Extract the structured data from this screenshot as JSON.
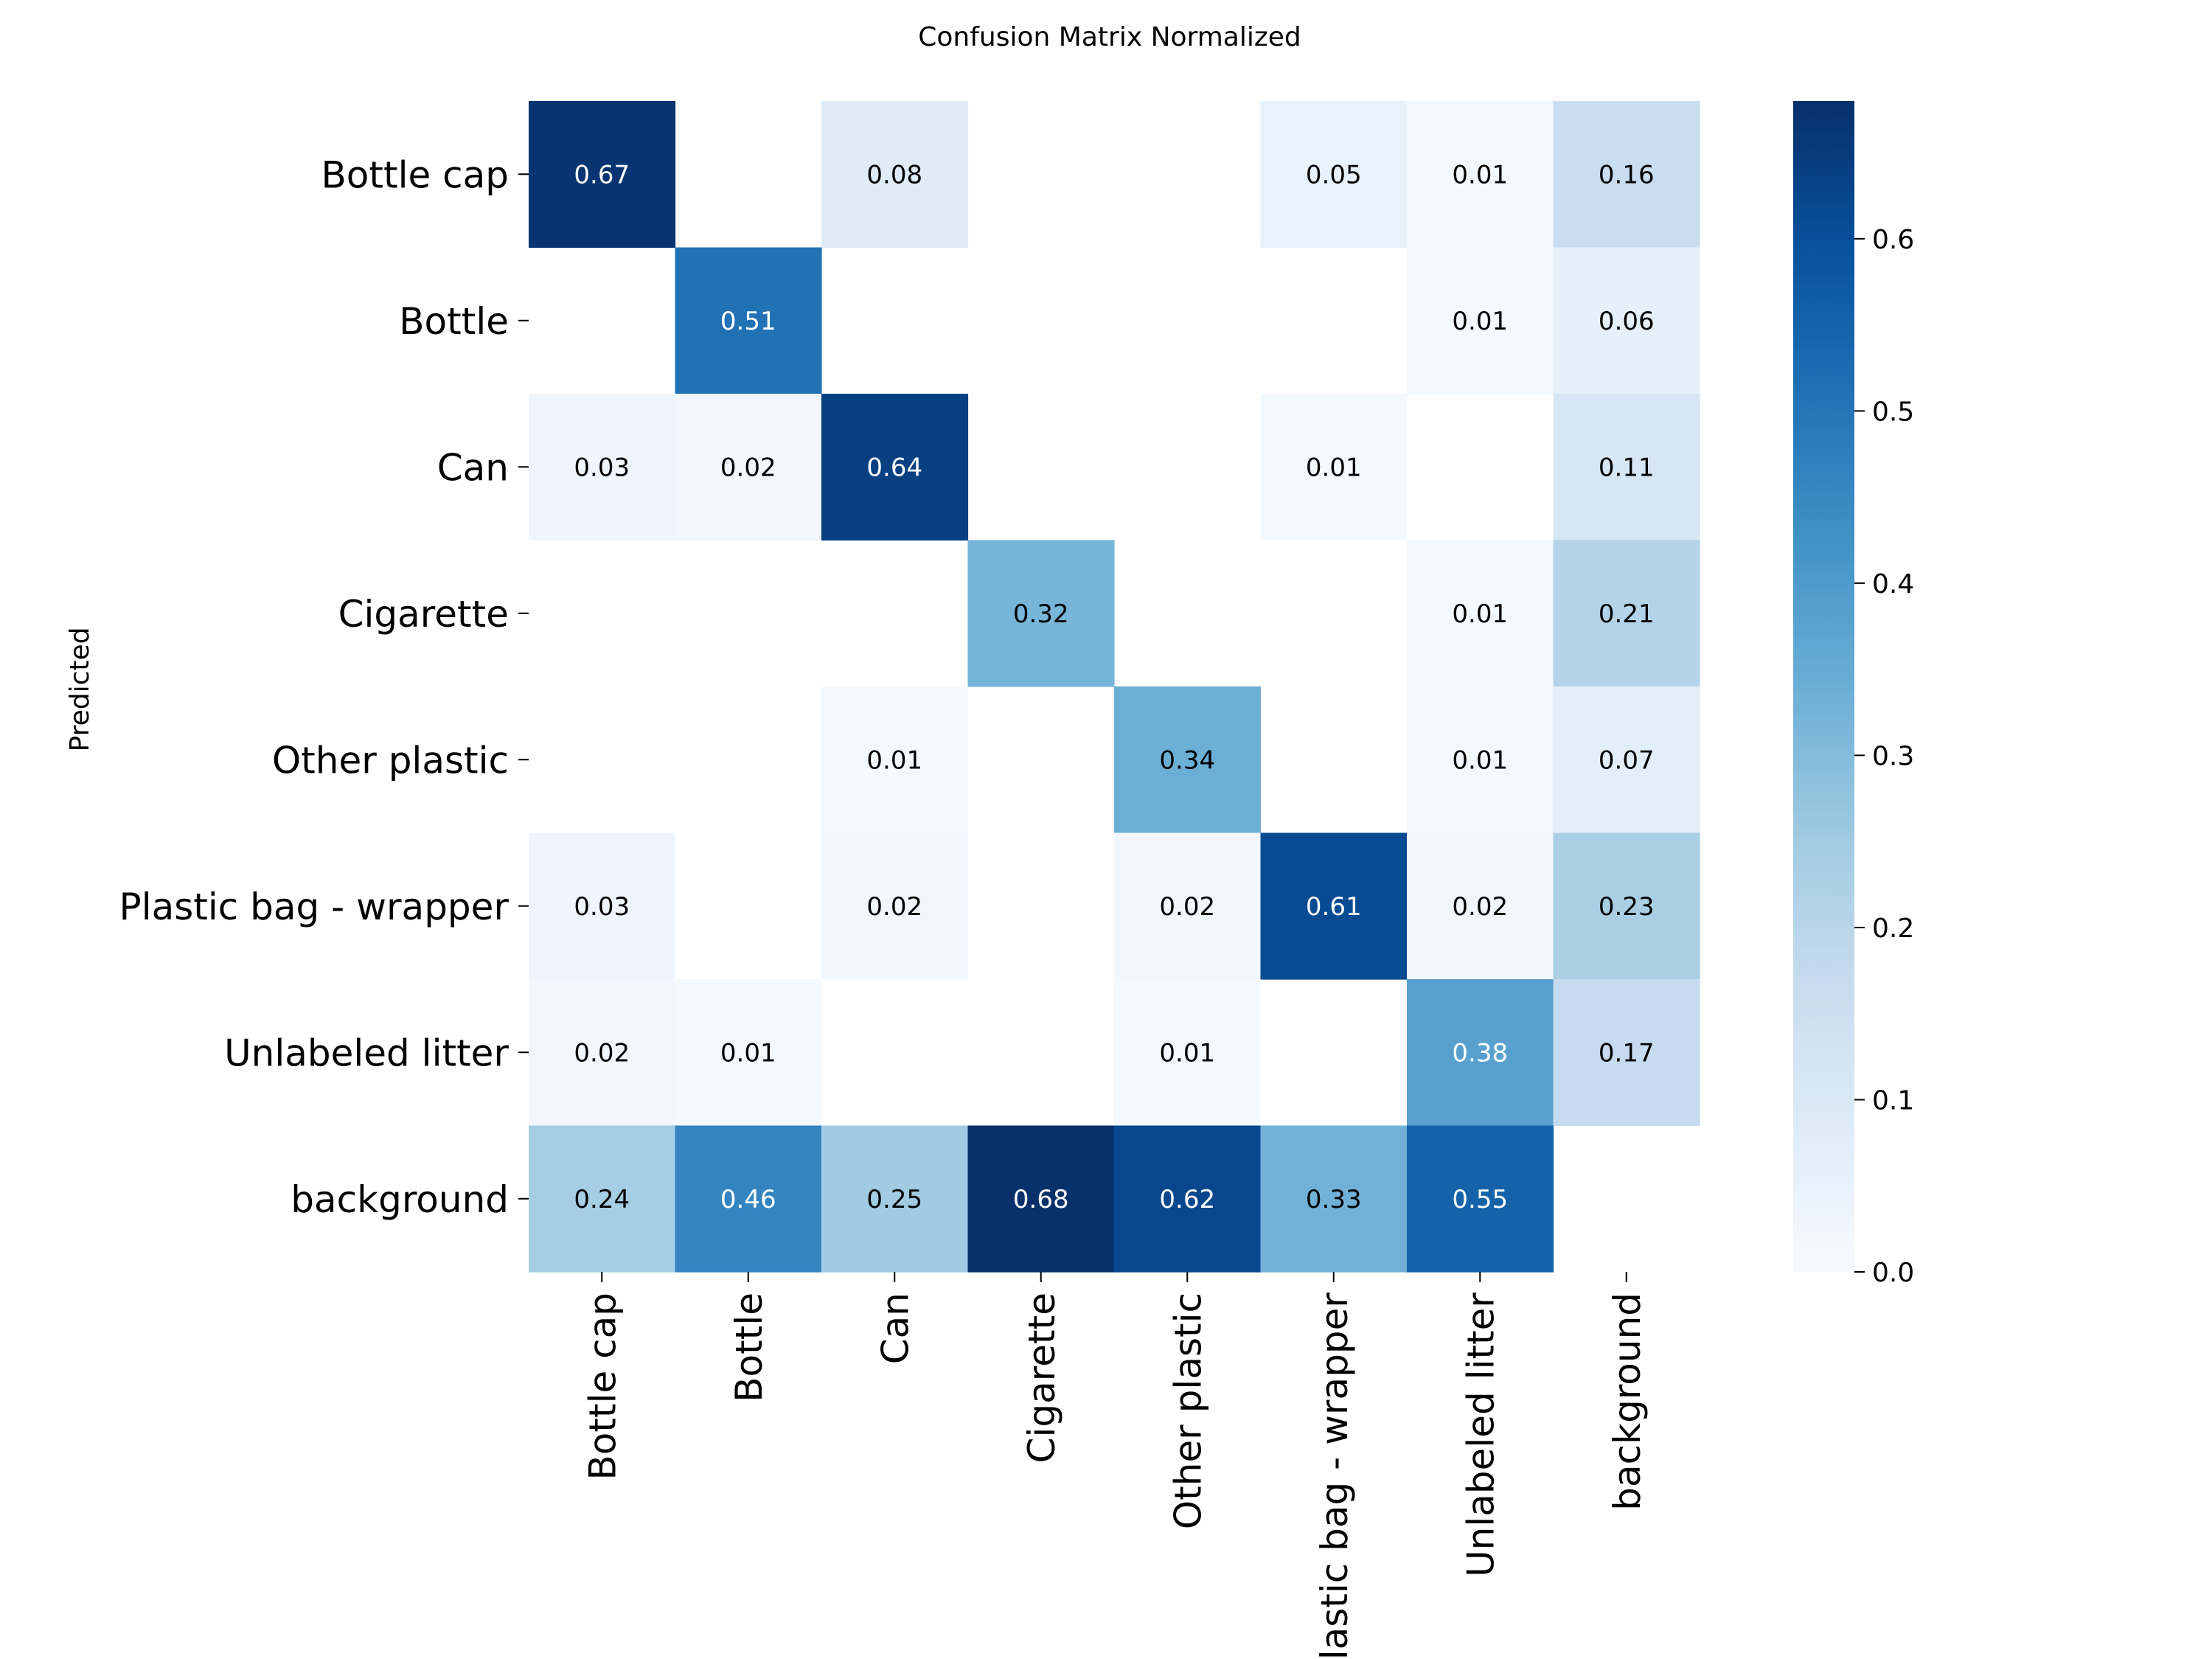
{
  "chart_data": {
    "type": "heatmap",
    "title": "Confusion Matrix Normalized",
    "ylabel": "Predicted",
    "xlabel": "",
    "rows": [
      "Bottle cap",
      "Bottle",
      "Can",
      "Cigarette",
      "Other plastic",
      "Plastic bag - wrapper",
      "Unlabeled litter",
      "background"
    ],
    "columns": [
      "Bottle cap",
      "Bottle",
      "Can",
      "Cigarette",
      "Other plastic",
      "Plastic bag - wrapper",
      "Unlabeled litter",
      "background"
    ],
    "values": [
      [
        0.67,
        null,
        0.08,
        null,
        null,
        0.05,
        0.01,
        0.16
      ],
      [
        null,
        0.51,
        null,
        null,
        null,
        null,
        0.01,
        0.06
      ],
      [
        0.03,
        0.02,
        0.64,
        null,
        null,
        0.01,
        null,
        0.11
      ],
      [
        null,
        null,
        null,
        0.32,
        null,
        null,
        0.01,
        0.21
      ],
      [
        null,
        null,
        0.01,
        null,
        0.34,
        null,
        0.01,
        0.07
      ],
      [
        0.03,
        null,
        0.02,
        null,
        0.02,
        0.61,
        0.02,
        0.23
      ],
      [
        0.02,
        0.01,
        null,
        null,
        0.01,
        null,
        0.38,
        0.17
      ],
      [
        0.24,
        0.46,
        0.25,
        0.68,
        0.62,
        0.33,
        0.55,
        null
      ]
    ],
    "colorbar": {
      "colormap": "Blues",
      "range": [
        0.0,
        0.68
      ],
      "ticks": [
        "0.0",
        "0.1",
        "0.2",
        "0.3",
        "0.4",
        "0.5",
        "0.6"
      ]
    }
  }
}
